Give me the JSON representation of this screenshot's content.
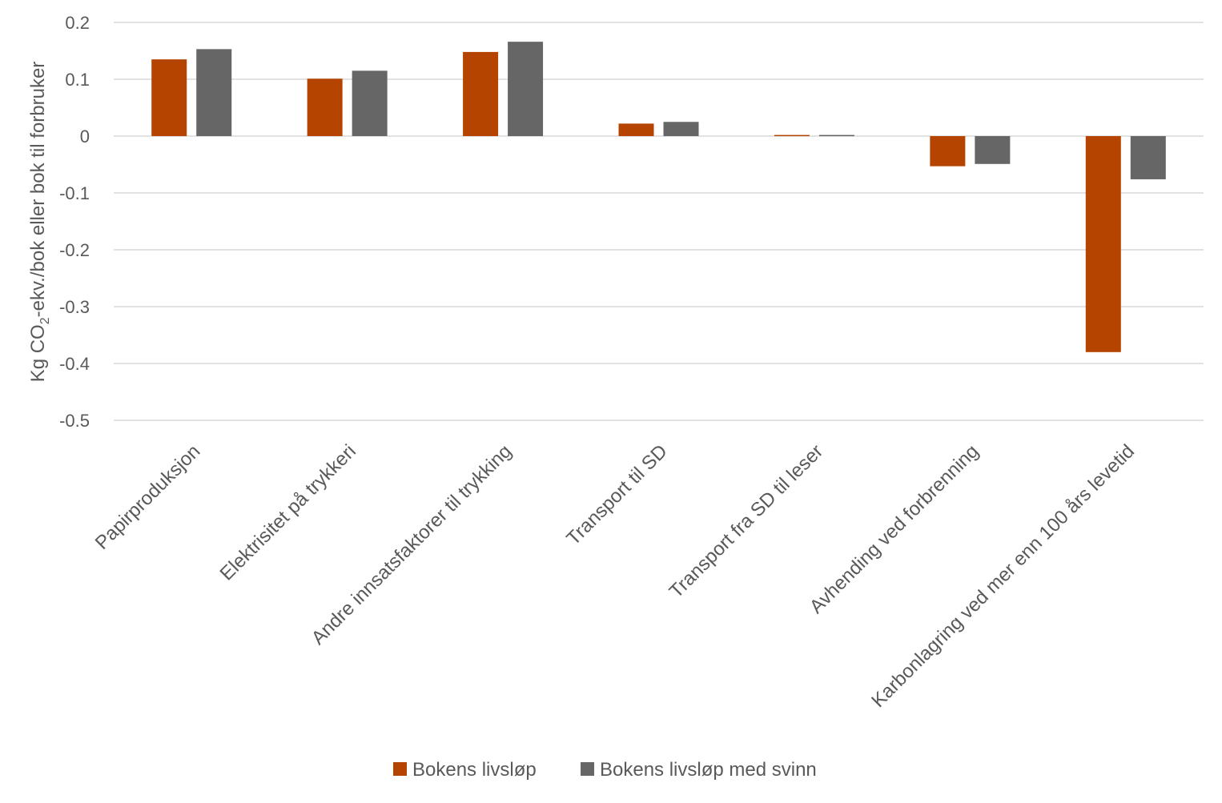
{
  "chart_data": {
    "type": "bar",
    "title": "",
    "xlabel": "",
    "ylabel": {
      "prefix": "Kg CO",
      "subscript": "2",
      "suffix": "-ekv./bok eller bok til forbruker"
    },
    "ylim": [
      -0.5,
      0.2
    ],
    "yticks": [
      0.2,
      0.1,
      0,
      -0.1,
      -0.2,
      -0.3,
      -0.4,
      -0.5
    ],
    "ytick_labels": [
      "0.2",
      "0.1",
      "0",
      "-0.1",
      "-0.2",
      "-0.3",
      "-0.4",
      "-0.5"
    ],
    "grid": true,
    "legend_position": "bottom",
    "categories": [
      "Papirproduksjon",
      "Elektrisitet på trykkeri",
      "Andre innsatsfaktorer til trykking",
      "Transport til SD",
      "Transport fra SD til leser",
      "Avhending ved forbrenning",
      "Karbonlagring ved mer enn 100 års levetid"
    ],
    "series": [
      {
        "name": "Bokens livsløp",
        "color": "#B54400",
        "values": [
          0.135,
          0.101,
          0.148,
          0.022,
          0.002,
          -0.053,
          -0.38
        ]
      },
      {
        "name": "Bokens livsløp med svinn",
        "color": "#666666",
        "values": [
          0.153,
          0.115,
          0.166,
          0.025,
          0.002,
          -0.049,
          -0.076
        ]
      }
    ]
  }
}
